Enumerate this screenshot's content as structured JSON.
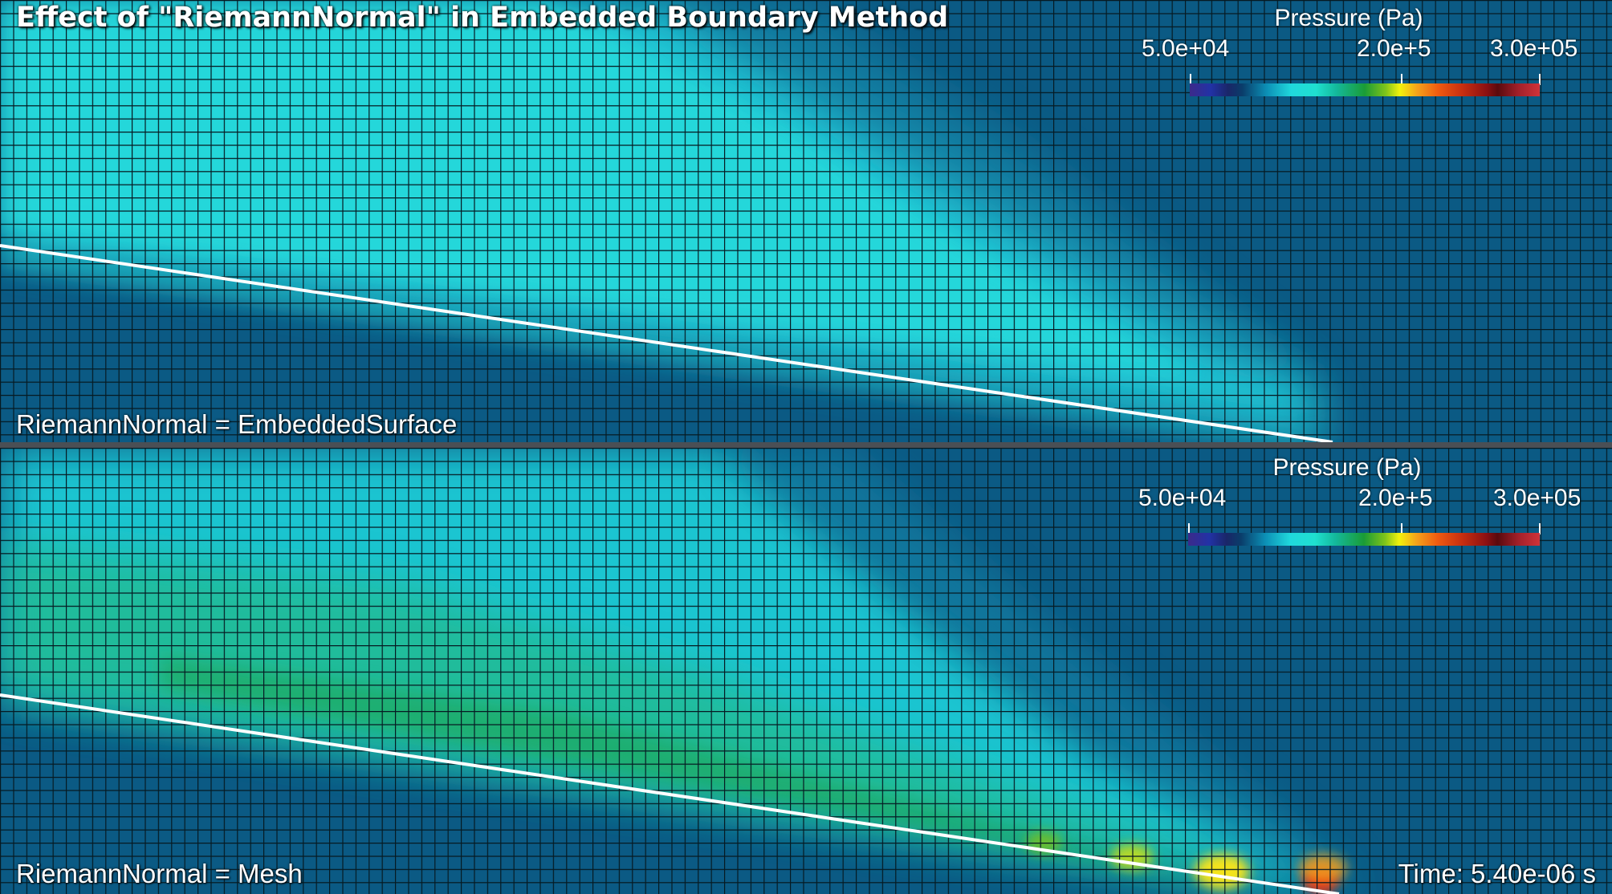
{
  "title": "Effect of \"RiemannNormal\" in Embedded Boundary Method",
  "top_panel": {
    "caption": "RiemannNormal = EmbeddedSurface",
    "legend": {
      "title": "Pressure (Pa)",
      "min_label": "5.0e+04",
      "mid_label": "2.0e+5",
      "max_label": "3.0e+05"
    }
  },
  "bottom_panel": {
    "caption": "RiemannNormal = Mesh",
    "time": "Time: 5.40e-06 s",
    "legend": {
      "title": "Pressure (Pa)",
      "min_label": "5.0e+04",
      "mid_label": "2.0e+5",
      "max_label": "3.0e+05"
    }
  },
  "colors": {
    "background_field": "#0b5a84",
    "shock_cyan": "#23e0e2",
    "shock_green": "#27b36e",
    "hot_yellow": "#f6e41c",
    "hot_red": "#e02a1a",
    "mesh_line": "#061a22",
    "boundary_line": "#ffffff"
  }
}
